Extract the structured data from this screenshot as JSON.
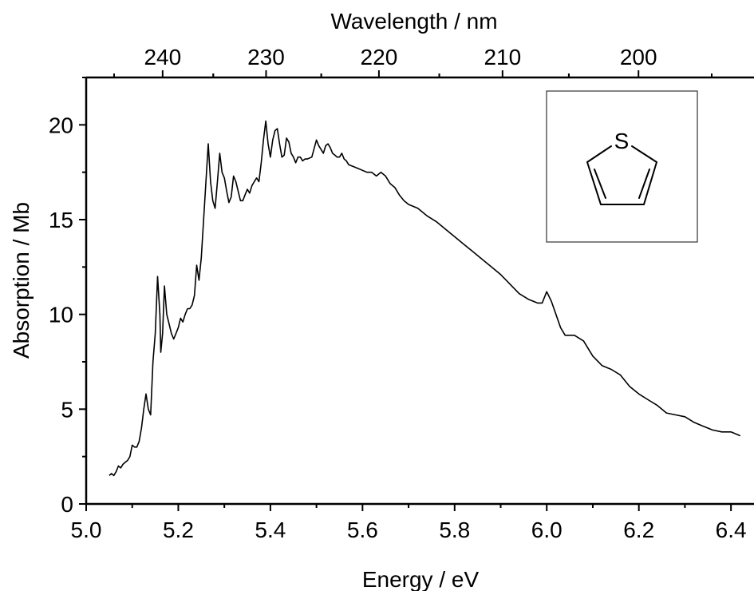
{
  "chart_data": {
    "type": "line",
    "xlabel": "Energy / eV",
    "ylabel": "Absorption / Mb",
    "x2label": "Wavelength / nm",
    "xlim": [
      5.0,
      6.45
    ],
    "ylim": [
      0,
      22.5
    ],
    "grid": false,
    "x_ticks": [
      "5.0",
      "5.2",
      "5.4",
      "5.6",
      "5.8",
      "6.0",
      "6.2",
      "6.4"
    ],
    "y_ticks": [
      "0",
      "5",
      "10",
      "15",
      "20"
    ],
    "x2_ticks": [
      "240",
      "230",
      "220",
      "210",
      "200"
    ],
    "inset_label": "S",
    "colors": {
      "line": "#000000",
      "axis": "#000000",
      "inset_border": "#333333"
    },
    "series": [
      {
        "x": [
          5.05,
          5.055,
          5.06,
          5.065,
          5.07,
          5.075,
          5.08,
          5.085,
          5.09,
          5.095,
          5.1,
          5.105,
          5.11,
          5.115,
          5.12,
          5.125,
          5.13,
          5.135,
          5.14,
          5.145,
          5.15,
          5.155,
          5.16,
          5.162,
          5.166,
          5.17,
          5.175,
          5.18,
          5.185,
          5.19,
          5.195,
          5.2,
          5.205,
          5.21,
          5.215,
          5.22,
          5.225,
          5.23,
          5.235,
          5.24,
          5.245,
          5.25,
          5.255,
          5.26,
          5.265,
          5.27,
          5.275,
          5.28,
          5.285,
          5.29,
          5.295,
          5.3,
          5.305,
          5.31,
          5.315,
          5.32,
          5.325,
          5.33,
          5.335,
          5.34,
          5.345,
          5.35,
          5.355,
          5.36,
          5.365,
          5.37,
          5.375,
          5.38,
          5.385,
          5.39,
          5.395,
          5.4,
          5.405,
          5.41,
          5.415,
          5.42,
          5.425,
          5.43,
          5.435,
          5.44,
          5.445,
          5.45,
          5.455,
          5.46,
          5.465,
          5.47,
          5.475,
          5.48,
          5.49,
          5.5,
          5.505,
          5.51,
          5.515,
          5.52,
          5.525,
          5.53,
          5.535,
          5.54,
          5.545,
          5.55,
          5.555,
          5.56,
          5.565,
          5.57,
          5.58,
          5.59,
          5.6,
          5.61,
          5.62,
          5.63,
          5.64,
          5.65,
          5.66,
          5.67,
          5.68,
          5.69,
          5.7,
          5.72,
          5.74,
          5.76,
          5.78,
          5.8,
          5.82,
          5.84,
          5.86,
          5.88,
          5.9,
          5.92,
          5.94,
          5.96,
          5.98,
          5.99,
          6.0,
          6.01,
          6.02,
          6.03,
          6.04,
          6.06,
          6.08,
          6.1,
          6.12,
          6.14,
          6.16,
          6.18,
          6.2,
          6.22,
          6.24,
          6.26,
          6.28,
          6.3,
          6.32,
          6.34,
          6.36,
          6.38,
          6.4,
          6.42
        ],
        "values": [
          1.5,
          1.6,
          1.5,
          1.7,
          2.0,
          1.9,
          2.1,
          2.2,
          2.3,
          2.5,
          3.1,
          3.0,
          3.0,
          3.3,
          4.0,
          5.0,
          5.8,
          5.0,
          4.7,
          7.5,
          9.0,
          12.0,
          10.0,
          8.0,
          9.0,
          11.5,
          10.0,
          9.5,
          9.0,
          8.7,
          9.0,
          9.3,
          9.8,
          9.6,
          10.0,
          10.3,
          10.3,
          10.5,
          11.0,
          12.6,
          11.8,
          13.0,
          15.0,
          17.0,
          19.0,
          17.0,
          16.0,
          15.6,
          17.0,
          18.5,
          17.5,
          17.2,
          16.5,
          15.9,
          16.2,
          17.3,
          17.0,
          16.5,
          16.0,
          16.0,
          16.3,
          16.6,
          16.4,
          16.8,
          17.0,
          17.2,
          17.0,
          18.0,
          19.2,
          20.2,
          19.0,
          18.3,
          19.2,
          19.7,
          19.8,
          19.0,
          18.3,
          18.4,
          19.3,
          19.1,
          18.5,
          18.3,
          18.0,
          18.3,
          18.3,
          18.1,
          18.2,
          18.2,
          18.3,
          19.2,
          18.9,
          18.7,
          18.5,
          18.9,
          19.0,
          18.8,
          18.5,
          18.4,
          18.3,
          18.3,
          18.5,
          18.2,
          18.1,
          17.9,
          17.8,
          17.7,
          17.6,
          17.5,
          17.5,
          17.3,
          17.5,
          17.3,
          16.9,
          16.7,
          16.3,
          16.0,
          15.8,
          15.6,
          15.2,
          14.9,
          14.5,
          14.1,
          13.7,
          13.3,
          12.9,
          12.5,
          12.1,
          11.6,
          11.1,
          10.8,
          10.6,
          10.6,
          11.2,
          10.7,
          10.0,
          9.3,
          8.9,
          8.9,
          8.6,
          7.8,
          7.3,
          7.1,
          6.8,
          6.2,
          5.8,
          5.5,
          5.2,
          4.8,
          4.7,
          4.6,
          4.3,
          4.1,
          3.9,
          3.8,
          3.8,
          3.6
        ]
      }
    ]
  }
}
